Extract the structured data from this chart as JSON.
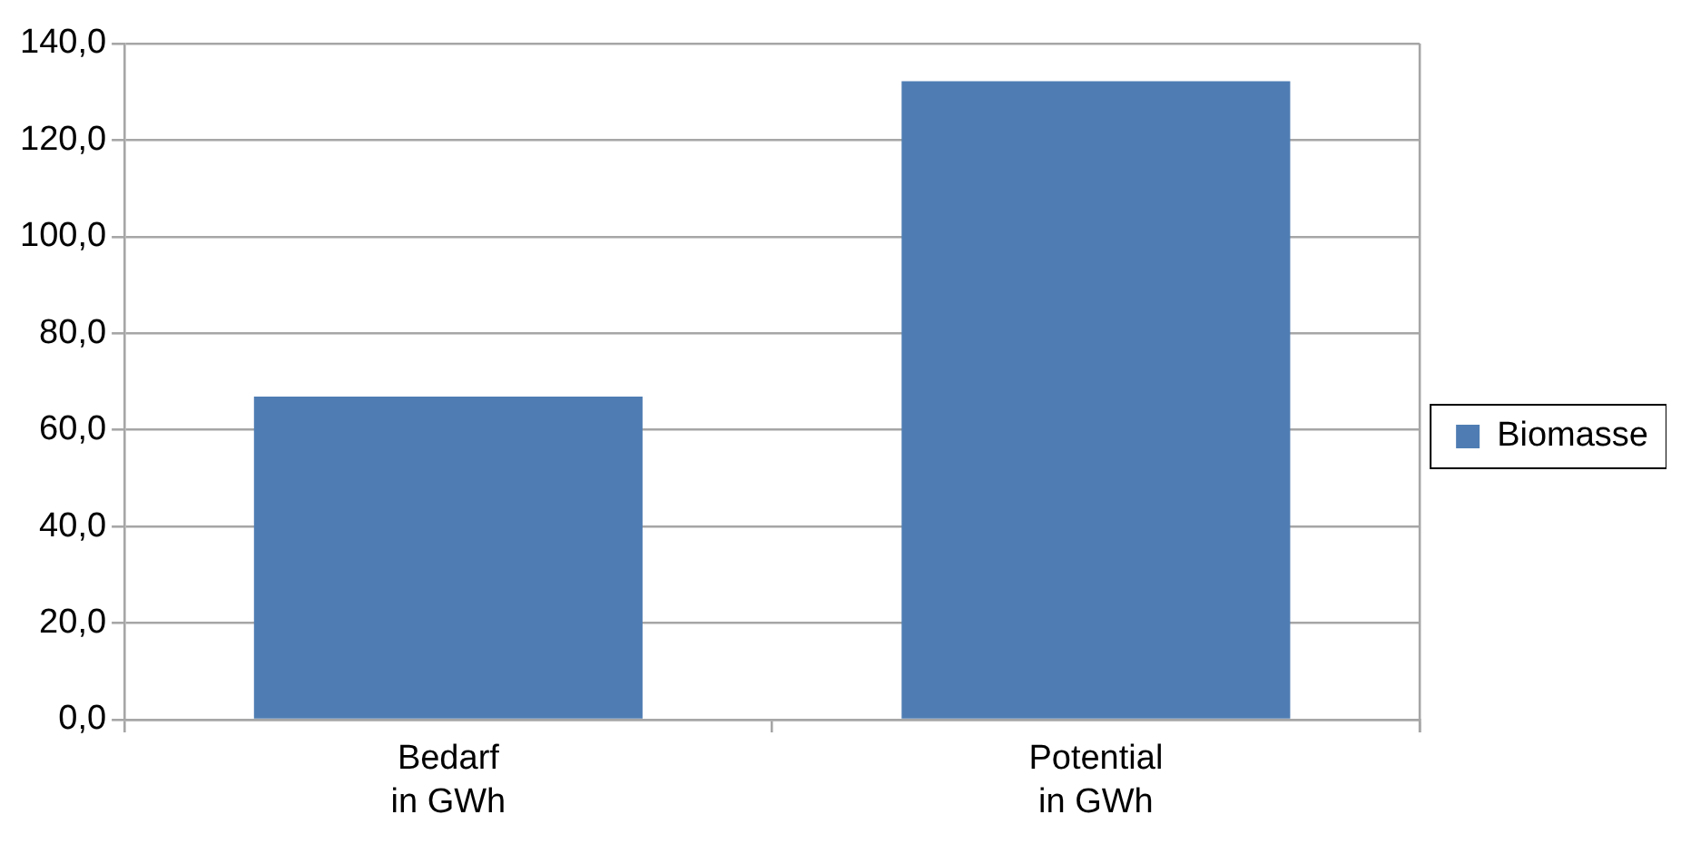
{
  "chart_data": {
    "type": "bar",
    "categories": [
      "Bedarf\nin GWh",
      "Potential\nin GWh"
    ],
    "series": [
      {
        "name": "Biomasse",
        "color": "#4f7db3",
        "values": [
          66.9,
          132.2
        ]
      }
    ],
    "ylim": [
      0,
      140
    ],
    "yticks": [
      {
        "value": 0,
        "label": "0,0"
      },
      {
        "value": 20,
        "label": "20,0"
      },
      {
        "value": 40,
        "label": "40,0"
      },
      {
        "value": 60,
        "label": "60,0"
      },
      {
        "value": 80,
        "label": "80,0"
      },
      {
        "value": 100,
        "label": "100,0"
      },
      {
        "value": 120,
        "label": "120,0"
      },
      {
        "value": 140,
        "label": "140,0"
      }
    ],
    "grid": "y",
    "legend": "right"
  }
}
